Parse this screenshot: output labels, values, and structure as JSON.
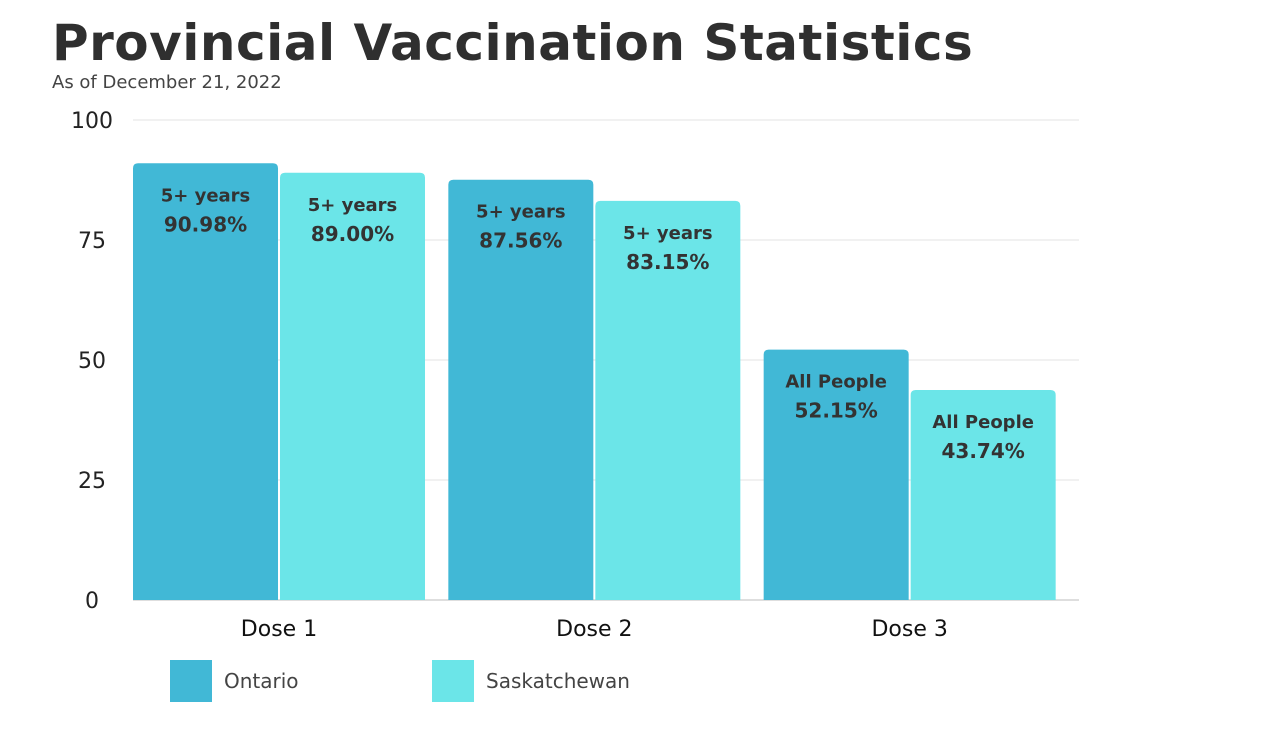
{
  "chart_data": {
    "type": "bar",
    "title": "Provincial Vaccination Statistics",
    "subtitle": "As of December 21, 2022",
    "categories": [
      "Dose 1",
      "Dose 2",
      "Dose 3"
    ],
    "ylim": [
      0,
      100
    ],
    "yticks": [
      "0",
      "25",
      "50",
      "75",
      "100"
    ],
    "grid": true,
    "legend_position": "bottom-left",
    "series": [
      {
        "name": "Ontario",
        "color": "#41b8d6",
        "values": [
          90.98,
          87.56,
          52.15
        ],
        "labels": [
          [
            "5+ years",
            "90.98%"
          ],
          [
            "5+ years",
            "87.56%"
          ],
          [
            "All People",
            "52.15%"
          ]
        ]
      },
      {
        "name": "Saskatchewan",
        "color": "#6be5e8",
        "values": [
          89.0,
          83.15,
          43.74
        ],
        "labels": [
          [
            "5+ years",
            "89.00%"
          ],
          [
            "5+ years",
            "83.15%"
          ],
          [
            "All People",
            "43.74%"
          ]
        ]
      }
    ]
  }
}
